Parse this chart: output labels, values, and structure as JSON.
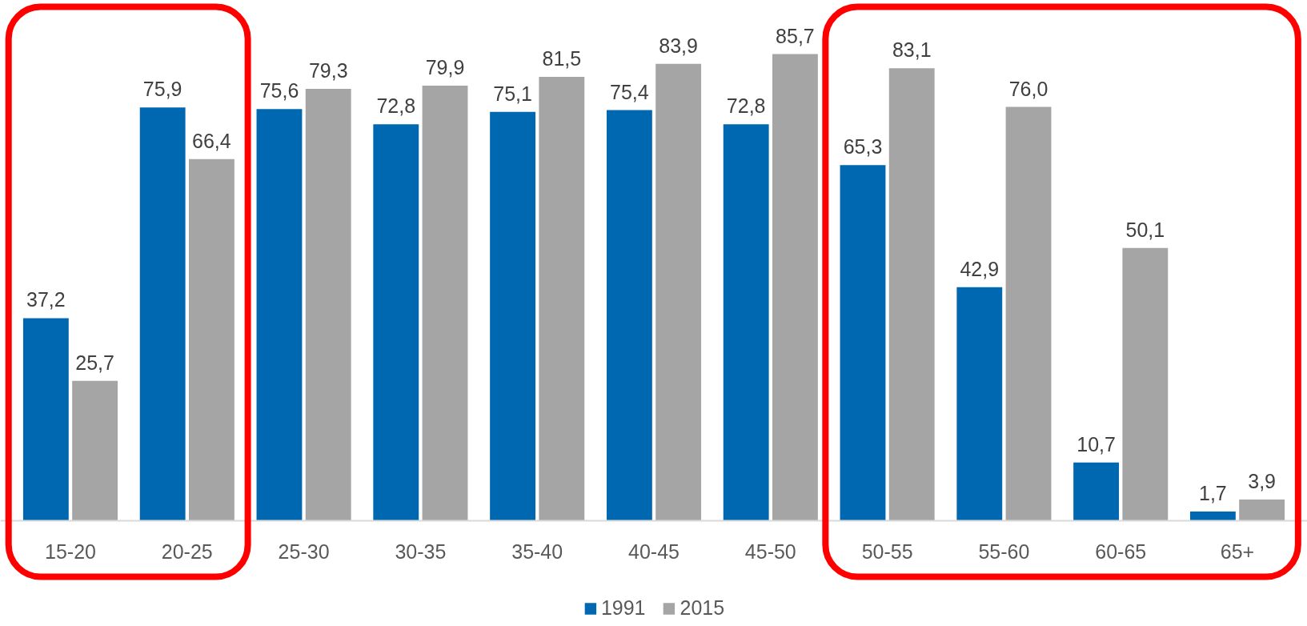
{
  "chart_data": {
    "type": "bar",
    "categories": [
      "15-20",
      "20-25",
      "25-30",
      "30-35",
      "35-40",
      "40-45",
      "45-50",
      "50-55",
      "55-60",
      "60-65",
      "65+"
    ],
    "series": [
      {
        "name": "1991",
        "color": "#0068b1",
        "values": [
          37.2,
          75.9,
          75.6,
          72.8,
          75.1,
          75.4,
          72.8,
          65.3,
          42.9,
          10.7,
          1.7
        ],
        "value_labels": [
          "37,2",
          "75,9",
          "75,6",
          "72,8",
          "75,1",
          "75,4",
          "72,8",
          "65,3",
          "42,9",
          "10,7",
          "1,7"
        ]
      },
      {
        "name": "2015",
        "color": "#a5a5a5",
        "values": [
          25.7,
          66.4,
          79.3,
          79.9,
          81.5,
          83.9,
          85.7,
          83.1,
          76.0,
          50.1,
          3.9
        ],
        "value_labels": [
          "25,7",
          "66,4",
          "79,3",
          "79,9",
          "81,5",
          "83,9",
          "85,7",
          "83,1",
          "76,0",
          "50,1",
          "3,9"
        ]
      }
    ],
    "legend": "bottom",
    "grid": false,
    "tick_labels": "x"
  }
}
